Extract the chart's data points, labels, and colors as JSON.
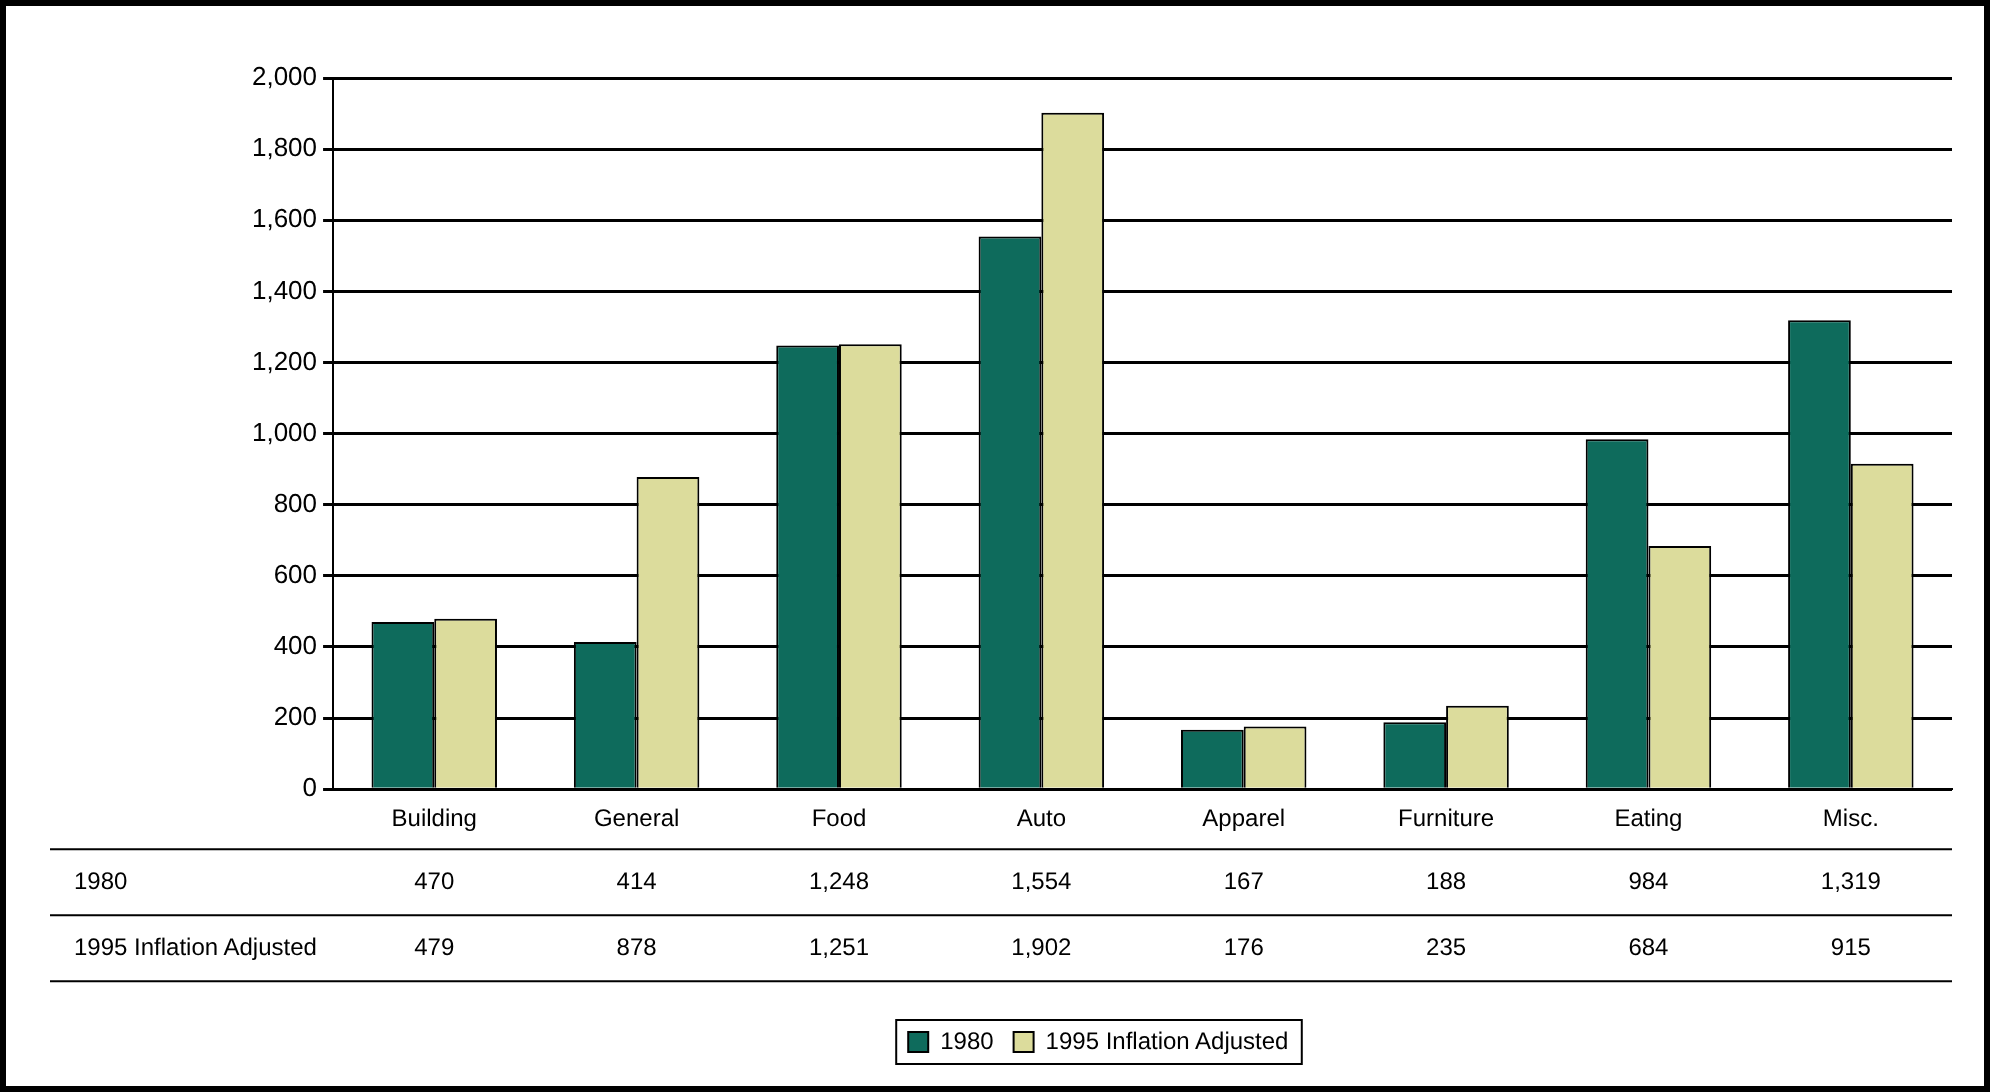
{
  "chart_data": {
    "type": "bar",
    "categories": [
      "Building",
      "General",
      "Food",
      "Auto",
      "Apparel",
      "Furniture",
      "Eating",
      "Misc."
    ],
    "series": [
      {
        "name": "1980",
        "color": "#0e6b5c",
        "values": [
          470,
          414,
          1248,
          1554,
          167,
          188,
          984,
          1319
        ],
        "value_labels": [
          "470",
          "414",
          "1,248",
          "1,554",
          "167",
          "188",
          "984",
          "1,319"
        ]
      },
      {
        "name": "1995 Inflation Adjusted",
        "color": "#dcdc9c",
        "values": [
          479,
          878,
          1251,
          1902,
          176,
          235,
          684,
          915
        ],
        "value_labels": [
          "479",
          "878",
          "1,251",
          "1,902",
          "176",
          "235",
          "684",
          "915"
        ]
      }
    ],
    "ylim": [
      0,
      2000
    ],
    "yticks": [
      0,
      200,
      400,
      600,
      800,
      {
        "value": 1000,
        "label": "1,000"
      },
      {
        "value": 1200,
        "label": "1,200"
      },
      {
        "value": 1400,
        "label": "1,400"
      },
      {
        "value": 1600,
        "label": "1,600"
      },
      {
        "value": 1800,
        "label": "1,800"
      },
      {
        "value": 2000,
        "label": "2,000"
      }
    ],
    "grid": "y",
    "legend": "bottom"
  }
}
